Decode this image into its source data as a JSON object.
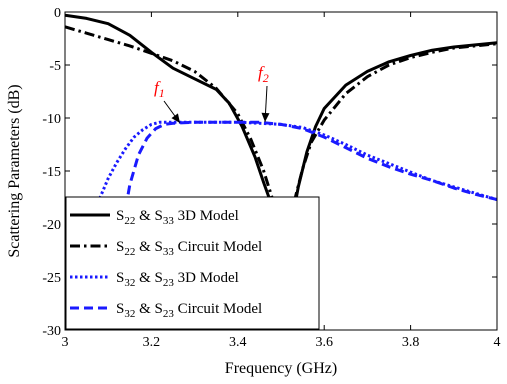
{
  "chart_data": {
    "type": "line",
    "xlabel": "Frequency (GHz)",
    "ylabel": "Scattering Parameters (dB)",
    "xlim": [
      3,
      4
    ],
    "ylim": [
      -30,
      0
    ],
    "xticks": [
      "3",
      "3.2",
      "3.4",
      "3.6",
      "3.8",
      "4"
    ],
    "yticks": [
      "0",
      "-5",
      "-10",
      "-15",
      "-20",
      "-25",
      "-30"
    ],
    "grid": false,
    "legend_position": "bottom-left",
    "annotations": [
      {
        "text": "f1",
        "base": "f",
        "sub": "1"
      },
      {
        "text": "f2",
        "base": "f",
        "sub": "2"
      }
    ],
    "series": [
      {
        "color": "#000000",
        "style": "solid",
        "x": [
          3.0,
          3.05,
          3.1,
          3.15,
          3.2,
          3.25,
          3.3,
          3.35,
          3.38,
          3.41,
          3.44,
          3.46,
          3.48,
          3.495
        ],
        "y": [
          -0.3,
          -0.6,
          -1.1,
          -2.2,
          -3.8,
          -5.3,
          -6.3,
          -7.3,
          -8.6,
          -10.8,
          -13.7,
          -16.1,
          -18.4,
          -19.8
        ]
      },
      {
        "color": "#000000",
        "style": "solid",
        "x": [
          3.525,
          3.54,
          3.56,
          3.58,
          3.6,
          3.65,
          3.7,
          3.75,
          3.8,
          3.85,
          3.9,
          3.95,
          4.0
        ],
        "y": [
          -19.8,
          -16.5,
          -13.2,
          -10.8,
          -9.1,
          -6.9,
          -5.6,
          -4.7,
          -4.1,
          -3.6,
          -3.3,
          -3.1,
          -2.9
        ]
      },
      {
        "color": "#000000",
        "style": "dashdot",
        "x": [
          3.0,
          3.05,
          3.1,
          3.15,
          3.2,
          3.25,
          3.3,
          3.35,
          3.4,
          3.43,
          3.46,
          3.48,
          3.5
        ],
        "y": [
          -1.4,
          -2.0,
          -2.6,
          -3.2,
          -3.9,
          -4.6,
          -5.6,
          -7.2,
          -9.6,
          -12.0,
          -15.0,
          -17.6,
          -19.8
        ]
      },
      {
        "color": "#000000",
        "style": "dashdot",
        "x": [
          3.52,
          3.535,
          3.55,
          3.57,
          3.6,
          3.65,
          3.7,
          3.75,
          3.8,
          3.85,
          3.9,
          3.95,
          4.0
        ],
        "y": [
          -19.8,
          -17.2,
          -14.8,
          -12.3,
          -10.2,
          -7.7,
          -6.1,
          -5.0,
          -4.3,
          -3.8,
          -3.4,
          -3.2,
          -3.0
        ]
      },
      {
        "color": "#1a1aff",
        "style": "dotted",
        "x": [
          3.06,
          3.08,
          3.1,
          3.12,
          3.14,
          3.16,
          3.18,
          3.2,
          3.22,
          3.25,
          3.3,
          3.35,
          3.4,
          3.45,
          3.5,
          3.55,
          3.6,
          3.65,
          3.7,
          3.75,
          3.8,
          3.85,
          3.9,
          3.95,
          4.0
        ],
        "y": [
          -19.8,
          -17.6,
          -15.7,
          -14.2,
          -12.9,
          -11.8,
          -11.1,
          -10.6,
          -10.4,
          -10.4,
          -10.4,
          -10.4,
          -10.4,
          -10.5,
          -10.6,
          -10.9,
          -11.6,
          -12.5,
          -13.5,
          -14.3,
          -15.1,
          -15.9,
          -16.5,
          -17.1,
          -17.7
        ]
      },
      {
        "color": "#1a1aff",
        "style": "dashed",
        "x": [
          3.135,
          3.15,
          3.17,
          3.19,
          3.21,
          3.23,
          3.25,
          3.3,
          3.35,
          3.4,
          3.45,
          3.5,
          3.55,
          3.6,
          3.65,
          3.7,
          3.75,
          3.8,
          3.85,
          3.9,
          3.95,
          4.0
        ],
        "y": [
          -19.8,
          -16.3,
          -13.5,
          -11.9,
          -11.0,
          -10.6,
          -10.5,
          -10.4,
          -10.4,
          -10.4,
          -10.4,
          -10.6,
          -11.0,
          -11.8,
          -12.8,
          -13.8,
          -14.6,
          -15.3,
          -15.9,
          -16.6,
          -17.2,
          -17.7
        ]
      }
    ],
    "legend": [
      {
        "color": "#000000",
        "style": "solid",
        "p1": "22",
        "p2": "33",
        "model": "3D Model"
      },
      {
        "color": "#000000",
        "style": "dashdot",
        "p1": "22",
        "p2": "33",
        "model": "Circuit Model"
      },
      {
        "color": "#1a1aff",
        "style": "dotted",
        "p1": "32",
        "p2": "23",
        "model": "3D Model"
      },
      {
        "color": "#1a1aff",
        "style": "dashed",
        "p1": "32",
        "p2": "23",
        "model": "Circuit Model"
      }
    ]
  }
}
